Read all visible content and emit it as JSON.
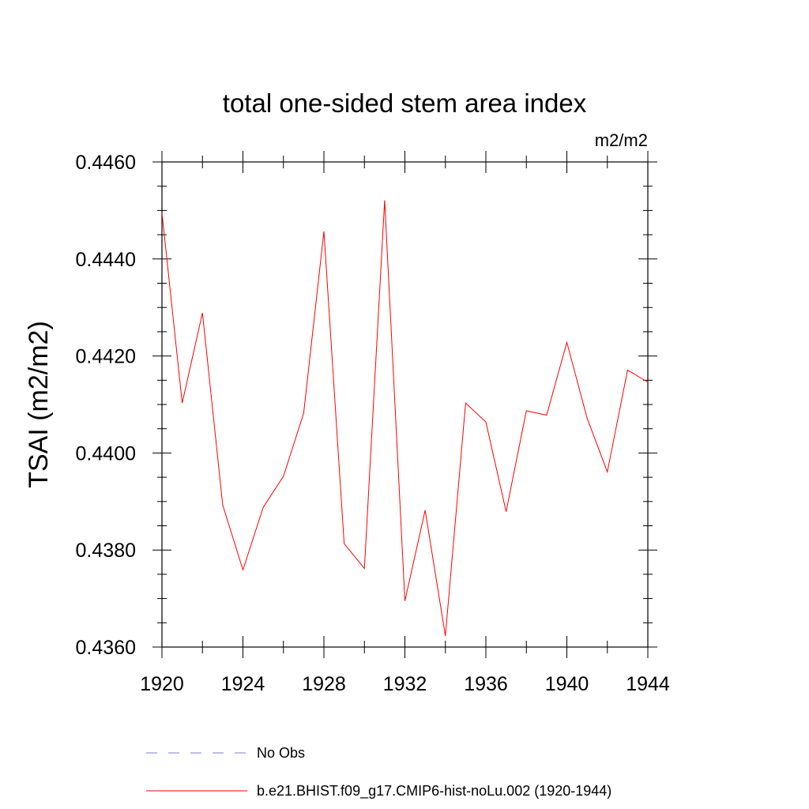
{
  "chart_data": {
    "type": "line",
    "title": "total one-sided stem area index",
    "units_label": "m2/m2",
    "ylabel": "TSAI  (m2/m2)",
    "xlabel": "",
    "xlim": [
      1920,
      1944
    ],
    "ylim": [
      0.436,
      0.446
    ],
    "x_ticks": [
      "1920",
      "1924",
      "1928",
      "1932",
      "1936",
      "1940",
      "1944"
    ],
    "y_ticks": [
      "0.4360",
      "0.4380",
      "0.4400",
      "0.4420",
      "0.4440",
      "0.4460"
    ],
    "grid": false,
    "legend_position": "bottom",
    "series": [
      {
        "name": "No Obs",
        "color": "#7b7bd8",
        "style": "dashed",
        "x": [],
        "values": []
      },
      {
        "name": "b.e21.BHIST.f09_g17.CMIP6-hist-noLu.002 (1920-1944)",
        "color": "#ff0000",
        "style": "solid",
        "x": [
          1920,
          1921,
          1922,
          1923,
          1924,
          1925,
          1926,
          1927,
          1928,
          1929,
          1930,
          1931,
          1932,
          1933,
          1934,
          1935,
          1936,
          1937,
          1938,
          1939,
          1940,
          1941,
          1942,
          1943,
          1944
        ],
        "values": [
          0.44495,
          0.44103,
          0.44289,
          0.43893,
          0.43759,
          0.43888,
          0.43952,
          0.44082,
          0.44457,
          0.43813,
          0.43762,
          0.44521,
          0.43695,
          0.43882,
          0.43623,
          0.44103,
          0.44064,
          0.43879,
          0.44087,
          0.44078,
          0.44228,
          0.44072,
          0.43961,
          0.44171,
          0.44146
        ]
      }
    ]
  }
}
